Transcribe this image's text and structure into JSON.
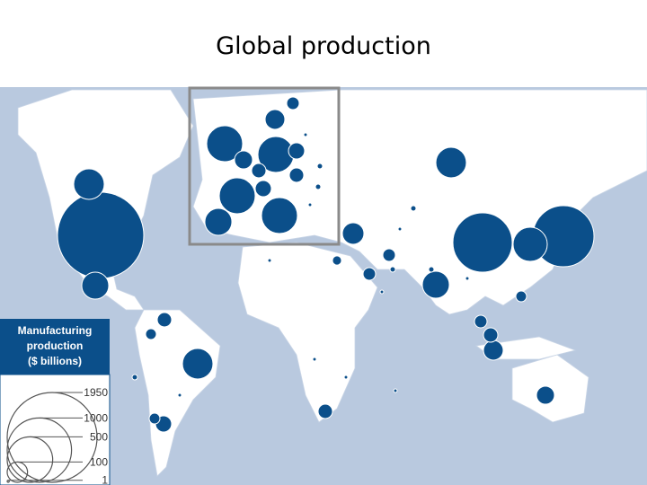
{
  "chart_data": {
    "type": "proportional-symbol-map",
    "title": "Global production",
    "legend": {
      "title_lines": [
        "Manufacturing",
        "production",
        "($ billions)"
      ],
      "values": [
        1950,
        1000,
        500,
        100,
        1
      ]
    },
    "color": "#0b4f8a",
    "values": [
      1797,
      225,
      176,
      850,
      902,
      282,
      225,
      176,
      225,
      50,
      28,
      63,
      28,
      94,
      50,
      38,
      28,
      78,
      112,
      38,
      38,
      50,
      20,
      312,
      312,
      312,
      312,
      176,
      78,
      94,
      63,
      50,
      63,
      50,
      38,
      7,
      7,
      3,
      3,
      7,
      3,
      3,
      7,
      3,
      3,
      7,
      3,
      3,
      3,
      7,
      3
    ]
  }
}
